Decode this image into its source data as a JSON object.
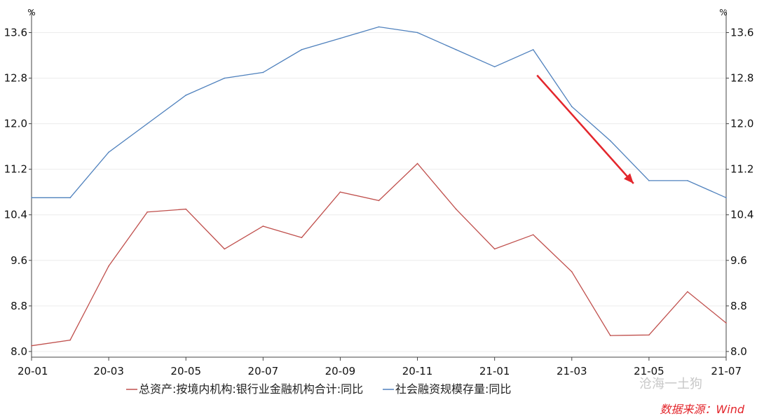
{
  "chart_data": {
    "type": "line",
    "y_unit_left": "%",
    "y_unit_right": "%",
    "ylim": [
      7.9,
      14.0
    ],
    "yticks": [
      "8.0",
      "8.8",
      "9.6",
      "10.4",
      "11.2",
      "12.0",
      "12.8",
      "13.6"
    ],
    "x": [
      "20-01",
      "20-02",
      "20-03",
      "20-04",
      "20-05",
      "20-06",
      "20-07",
      "20-08",
      "20-09",
      "20-10",
      "20-11",
      "20-12",
      "21-01",
      "21-02",
      "21-03",
      "21-04",
      "21-05",
      "21-06",
      "21-07"
    ],
    "xticks": [
      "20-01",
      "20-03",
      "20-05",
      "20-07",
      "20-09",
      "20-11",
      "21-01",
      "21-03",
      "21-05",
      "21-07"
    ],
    "series": [
      {
        "name": "总资产:按境内机构:银行业金融机构合计:同比",
        "color": "#c0504d",
        "values": [
          8.1,
          8.2,
          9.5,
          10.45,
          10.5,
          9.8,
          10.2,
          10.0,
          10.8,
          10.65,
          11.3,
          10.5,
          9.8,
          10.05,
          9.4,
          8.28,
          8.29,
          9.05,
          8.5
        ]
      },
      {
        "name": "社会融资规模存量:同比",
        "color": "#4f81bd",
        "values": [
          10.7,
          10.7,
          11.5,
          12.0,
          12.5,
          12.8,
          12.9,
          13.3,
          13.5,
          13.7,
          13.6,
          13.3,
          13.0,
          13.3,
          12.3,
          11.7,
          11.0,
          11.0,
          10.7
        ]
      }
    ],
    "annotation": {
      "type": "arrow",
      "color": "#e3262c",
      "from": [
        13.1,
        12.85
      ],
      "to": [
        15.6,
        10.95
      ]
    }
  },
  "watermark": "沧海一土狗",
  "source": "数据来源：Wind"
}
